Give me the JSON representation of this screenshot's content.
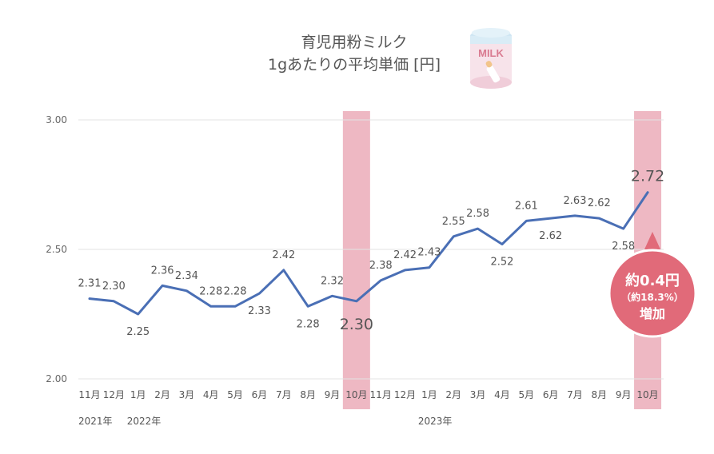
{
  "chart_data": {
    "type": "line",
    "title": [
      "育児用粉ミルク",
      "1gあたりの平均単価 [円]"
    ],
    "xlabel": "",
    "ylabel": "",
    "ylim": [
      2.0,
      3.0
    ],
    "yticks": [
      "3.00",
      "2.50",
      "2.00"
    ],
    "grid": true,
    "categories": [
      "11月",
      "12月",
      "1月",
      "2月",
      "3月",
      "4月",
      "5月",
      "6月",
      "7月",
      "8月",
      "9月",
      "10月",
      "11月",
      "12月",
      "1月",
      "2月",
      "3月",
      "4月",
      "5月",
      "6月",
      "7月",
      "8月",
      "9月",
      "10月"
    ],
    "years": [
      {
        "label": "2021年",
        "index": 0
      },
      {
        "label": "2022年",
        "index": 2
      },
      {
        "label": "2023年",
        "index": 14
      }
    ],
    "values": [
      2.31,
      2.3,
      2.25,
      2.36,
      2.34,
      2.28,
      2.28,
      2.33,
      2.42,
      2.28,
      2.32,
      2.3,
      2.38,
      2.42,
      2.43,
      2.55,
      2.58,
      2.52,
      2.61,
      2.62,
      2.63,
      2.62,
      2.58,
      2.72
    ],
    "labels": [
      "2.31",
      "2.30",
      "2.25",
      "2.36",
      "2.34",
      "2.28",
      "2.28",
      "2.33",
      "2.42",
      "2.28",
      "2.32",
      "2.30",
      "2.38",
      "2.42",
      "2.43",
      "2.55",
      "2.58",
      "2.52",
      "2.61",
      "2.62",
      "2.63",
      "2.62",
      "2.58",
      "2.72"
    ],
    "highlight_indices": [
      11,
      23
    ],
    "line_color": "#4a6fb5",
    "highlight_color": "#eeb8c3",
    "callout": {
      "line1": "約0.4円",
      "line2": "（約18.3%）",
      "line3": "増加",
      "color": "#e16a79"
    },
    "icon": {
      "name": "milk-can-icon",
      "text": "MILK"
    }
  }
}
